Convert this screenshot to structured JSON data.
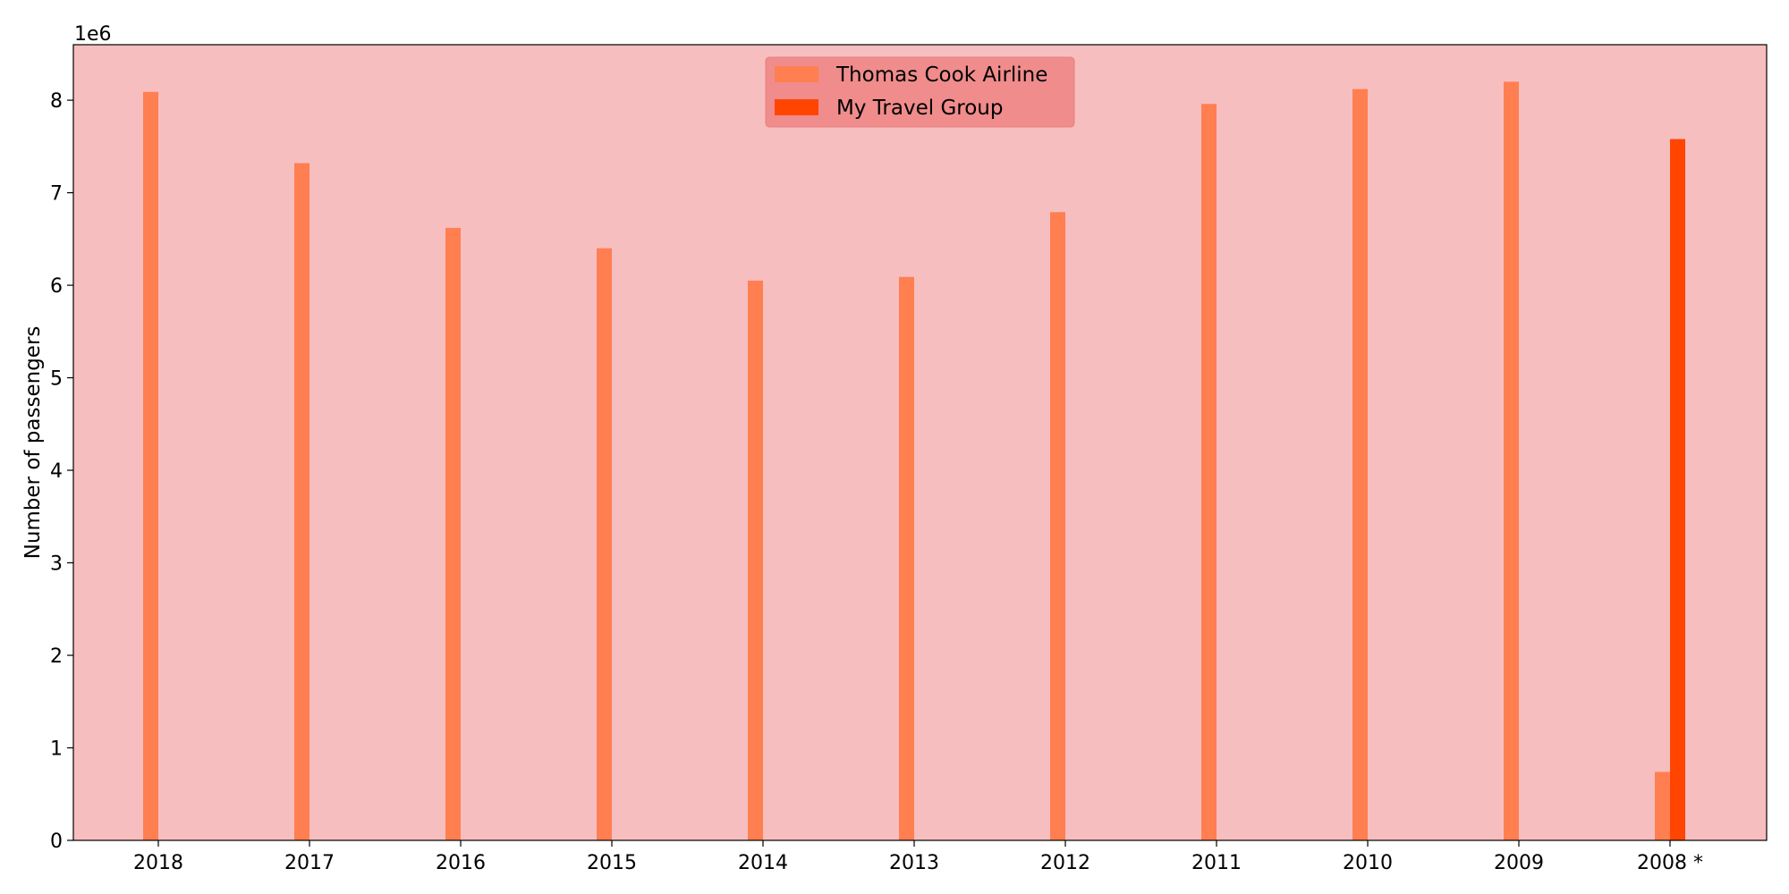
{
  "chart_data": {
    "type": "bar",
    "title": "",
    "xlabel": "",
    "ylabel": "Number of passengers",
    "y_offset_text": "1e6",
    "y_scale": 1000000,
    "ylim": [
      0,
      8600000
    ],
    "yticks": [
      0,
      1,
      2,
      3,
      4,
      5,
      6,
      7,
      8
    ],
    "grid": false,
    "legend_position": "upper center",
    "categories": [
      "2018",
      "2017",
      "2016",
      "2015",
      "2014",
      "2013",
      "2012",
      "2011",
      "2010",
      "2009",
      "2008 *"
    ],
    "series": [
      {
        "name": "Thomas Cook Airline",
        "color": "#ff7f50",
        "values": [
          8090000,
          7320000,
          6620000,
          6400000,
          6050000,
          6090000,
          6790000,
          7960000,
          8120000,
          8200000,
          740000
        ]
      },
      {
        "name": "My Travel Group",
        "color": "#ff4500",
        "values": [
          null,
          null,
          null,
          null,
          null,
          null,
          null,
          null,
          null,
          null,
          7580000
        ]
      }
    ],
    "colors": {
      "plot_background": "#f7bec0",
      "legend_background": "#f08c8c",
      "page_background": "#ffffff"
    }
  }
}
